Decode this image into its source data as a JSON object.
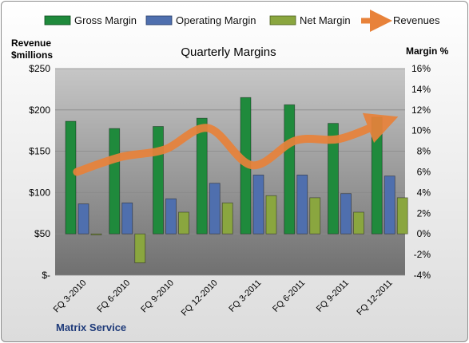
{
  "chart_data": {
    "type": "bar",
    "title": "Quarterly Margins",
    "footer": "Matrix Service",
    "ylabel_left": [
      "Revenue",
      "$millions"
    ],
    "ylabel_right": "Margin %",
    "categories": [
      "FQ 3-2010",
      "FQ 6-2010",
      "FQ 9-2010",
      "FQ 12-2010",
      "FQ 3-2011",
      "FQ 6-2011",
      "FQ 9-2011",
      "FQ 12-2011"
    ],
    "left_axis": {
      "range": [
        0,
        250
      ],
      "ticks": [
        0,
        50,
        100,
        150,
        200,
        250
      ],
      "tick_labels": [
        "$-",
        "$50",
        "$100",
        "$150",
        "$200",
        "$250"
      ]
    },
    "right_axis": {
      "range": [
        -4,
        16
      ],
      "ticks": [
        -4,
        -2,
        0,
        2,
        4,
        6,
        8,
        10,
        12,
        14,
        16
      ],
      "tick_labels": [
        "-4%",
        "-2%",
        "0%",
        "2%",
        "4%",
        "6%",
        "8%",
        "10%",
        "12%",
        "14%",
        "16%"
      ]
    },
    "series": [
      {
        "name": "Gross Margin",
        "axis": "right",
        "color": "#1f8a3c",
        "values": [
          10.9,
          10.2,
          10.4,
          11.2,
          13.2,
          12.5,
          10.7,
          11.3
        ]
      },
      {
        "name": "Operating Margin",
        "axis": "right",
        "color": "#4f6fae",
        "values": [
          2.9,
          3.0,
          3.4,
          4.9,
          5.7,
          5.7,
          3.9,
          5.6
        ]
      },
      {
        "name": "Net Margin",
        "axis": "right",
        "color": "#8aa63f",
        "values": [
          -0.1,
          -2.8,
          2.1,
          3.0,
          3.7,
          3.5,
          2.1,
          3.5
        ]
      },
      {
        "name": "Revenues",
        "axis": "left",
        "type": "line",
        "color": "#e8823a",
        "values": [
          125,
          143,
          152,
          178,
          133,
          163,
          165,
          185
        ]
      }
    ],
    "grid": true,
    "legend_position": "top"
  }
}
